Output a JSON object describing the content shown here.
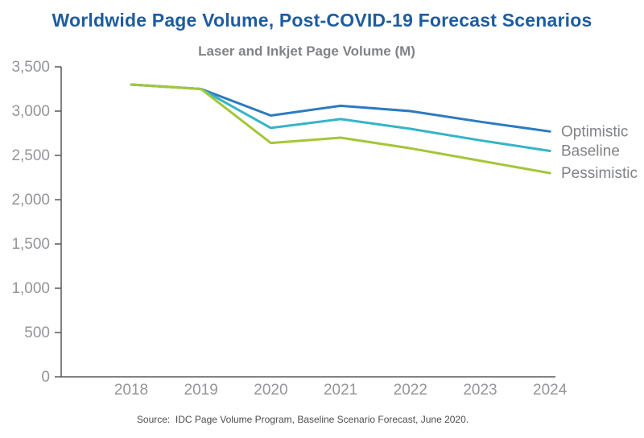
{
  "page": {
    "title": "Worldwide Page Volume, Post-COVID-19 Forecast Scenarios",
    "source": "Source:  IDC Page Volume Program, Baseline Scenario Forecast, June 2020."
  },
  "colors": {
    "title_text": "#1e5c9f",
    "subtitle_text": "#808285",
    "axis_line": "#58595b",
    "tick_label": "#939598",
    "legend_label": "#808285",
    "source_text": "#4d4d4f"
  },
  "chart_data": {
    "type": "line",
    "title": "Laser and Inkjet Page Volume (M)",
    "xlabel": "",
    "ylabel": "",
    "x": [
      2018,
      2019,
      2020,
      2021,
      2022,
      2023,
      2024
    ],
    "series": [
      {
        "name": "Optimistic",
        "color": "#2d7bbf",
        "values": [
          3300,
          3250,
          2950,
          3060,
          3000,
          2880,
          2770
        ]
      },
      {
        "name": "Baseline",
        "color": "#35b4c8",
        "values": [
          3300,
          3250,
          2810,
          2910,
          2800,
          2670,
          2550
        ]
      },
      {
        "name": "Pessimistic",
        "color": "#a4c639",
        "values": [
          3300,
          3250,
          2640,
          2700,
          2580,
          2440,
          2300
        ]
      }
    ],
    "ylim": [
      0,
      3500
    ],
    "y_tick_step": 500,
    "y_tick_labels": [
      "0",
      "500",
      "1,000",
      "1,500",
      "2,000",
      "2,500",
      "3,000",
      "3,500"
    ],
    "grid": false,
    "legend_position": "right-of-line-ends"
  }
}
